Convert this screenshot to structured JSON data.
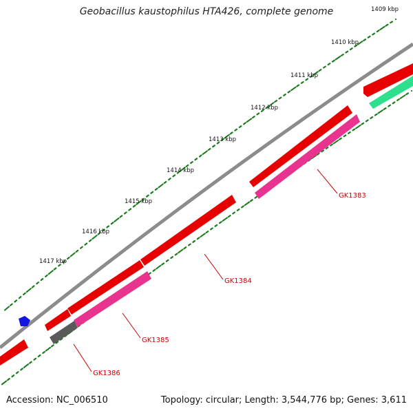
{
  "title": "Geobacillus kaustophilus HTA426, complete genome",
  "footer": {
    "accession": "Accession: NC_006510",
    "summary": "Topology: circular; Length: 3,544,776 bp; Genes: 3,611"
  },
  "ruler": {
    "labels": [
      "1409 kbp",
      "1410 kbp",
      "1411 kbp",
      "1412 kbp",
      "1413 kbp",
      "1414 kbp",
      "1415 kbp",
      "1416 kbp",
      "1417 kbp"
    ]
  },
  "genes": [
    {
      "id": "GK1383",
      "label": "GK1383"
    },
    {
      "id": "GK1384",
      "label": "GK1384"
    },
    {
      "id": "GK1385",
      "label": "GK1385"
    },
    {
      "id": "GK1386",
      "label": "GK1386"
    }
  ],
  "colors": {
    "background": "#ffffff",
    "backbone": "#8c8c8c",
    "tick": "#1a7a1a",
    "cds_forward": "#e60000",
    "cds_reverse": "#e8338f",
    "cds_teal": "#2ee08e",
    "cds_gray": "#5a5a5a",
    "blue_marker": "#1515e0",
    "label": "#cc0000"
  }
}
